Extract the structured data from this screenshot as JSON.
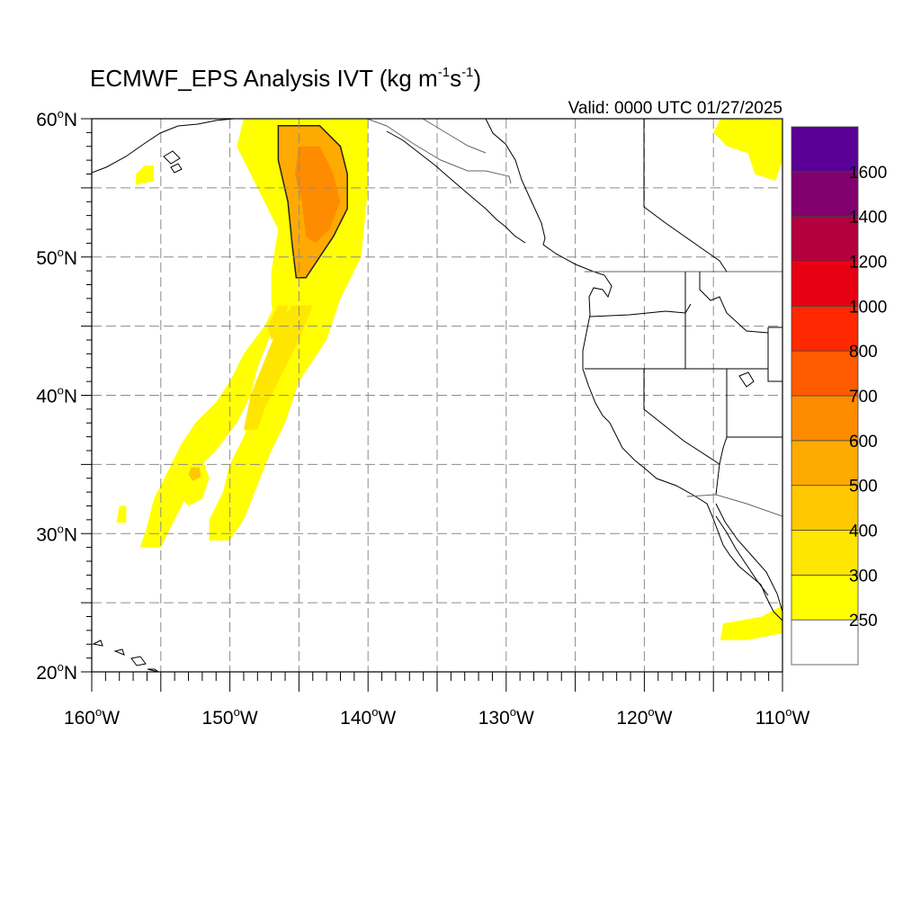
{
  "figure": {
    "title_main": "ECMWF_EPS Analysis IVT (kg m",
    "title_exp1": "-1",
    "title_mid": "s",
    "title_exp2": "-1",
    "title_end": ")",
    "valid_text": "Valid: 0000 UTC 01/27/2025"
  },
  "map": {
    "lon_range": [
      -160,
      -110
    ],
    "lat_range": [
      20,
      60
    ],
    "grid_step_deg": 5,
    "grid": "dashed",
    "lat_labels": [
      {
        "value": 60,
        "text": "60",
        "hemi": "N"
      },
      {
        "value": 50,
        "text": "50",
        "hemi": "N"
      },
      {
        "value": 40,
        "text": "40",
        "hemi": "N"
      },
      {
        "value": 30,
        "text": "30",
        "hemi": "N"
      },
      {
        "value": 20,
        "text": "20",
        "hemi": "N"
      }
    ],
    "lon_labels": [
      {
        "value": -160,
        "text": "160",
        "hemi": "W"
      },
      {
        "value": -150,
        "text": "150",
        "hemi": "W"
      },
      {
        "value": -140,
        "text": "140",
        "hemi": "W"
      },
      {
        "value": -130,
        "text": "130",
        "hemi": "W"
      },
      {
        "value": -120,
        "text": "120",
        "hemi": "W"
      },
      {
        "value": -110,
        "text": "110",
        "hemi": "W"
      }
    ],
    "contour_level": 600
  },
  "colorbar": {
    "levels": [
      "250",
      "300",
      "400",
      "500",
      "600",
      "700",
      "800",
      "1000",
      "1200",
      "1400",
      "1600"
    ],
    "colors": [
      "#ffffff",
      "#ffff00",
      "#ffe600",
      "#ffc800",
      "#ffaa00",
      "#ff8c00",
      "#ff5a00",
      "#ff2800",
      "#e60012",
      "#b4003c",
      "#82006e",
      "#5a0096"
    ]
  },
  "ivt_field": {
    "units": "kg m-1 s-1",
    "regions": [
      {
        "name": "river-north-head-outer",
        "level_index": 2,
        "polygon": [
          [
            -147.5,
            60
          ],
          [
            -140.5,
            60
          ],
          [
            -140.5,
            55
          ],
          [
            -141,
            50
          ],
          [
            -143,
            47
          ],
          [
            -144.5,
            45.5
          ],
          [
            -146,
            45
          ],
          [
            -147,
            46
          ],
          [
            -146,
            49
          ],
          [
            -145.5,
            52
          ],
          [
            -147,
            55
          ],
          [
            -148.5,
            58
          ],
          [
            -148.5,
            60
          ]
        ]
      },
      {
        "name": "river-north-head-yellow",
        "level_index": 1,
        "polygon": [
          [
            -149,
            60
          ],
          [
            -140,
            60
          ],
          [
            -140,
            55
          ],
          [
            -140.5,
            50
          ],
          [
            -142,
            47
          ],
          [
            -143.5,
            45
          ],
          [
            -145,
            44
          ],
          [
            -146,
            44
          ],
          [
            -147,
            46.5
          ],
          [
            -147,
            49
          ],
          [
            -146.5,
            52
          ],
          [
            -148,
            55
          ],
          [
            -149.5,
            58
          ]
        ]
      },
      {
        "name": "river-main-body",
        "level_index": 1,
        "polygon": [
          [
            -144.5,
            47
          ],
          [
            -142,
            47
          ],
          [
            -143,
            44
          ],
          [
            -145,
            41
          ],
          [
            -146,
            38
          ],
          [
            -147,
            36
          ],
          [
            -148,
            33.5
          ],
          [
            -149,
            31
          ],
          [
            -150,
            29.5
          ],
          [
            -151.5,
            29.5
          ],
          [
            -151.5,
            31
          ],
          [
            -150.5,
            33
          ],
          [
            -150,
            35
          ],
          [
            -149,
            37
          ],
          [
            -148,
            40
          ],
          [
            -147.5,
            42
          ],
          [
            -146.5,
            44.5
          ]
        ]
      },
      {
        "name": "river-main-inner",
        "level_index": 2,
        "polygon": [
          [
            -145.5,
            46.5
          ],
          [
            -144,
            46.5
          ],
          [
            -145,
            44
          ],
          [
            -146.5,
            41
          ],
          [
            -147.5,
            39
          ],
          [
            -148,
            37.5
          ],
          [
            -149,
            37.5
          ],
          [
            -148.5,
            40
          ],
          [
            -147.5,
            42.5
          ],
          [
            -146.5,
            45
          ]
        ]
      },
      {
        "name": "river-west-filament",
        "level_index": 1,
        "polygon": [
          [
            -147,
            49
          ],
          [
            -146.5,
            47
          ],
          [
            -147.5,
            45
          ],
          [
            -149,
            43
          ],
          [
            -150,
            41
          ],
          [
            -151,
            39.5
          ],
          [
            -152.5,
            38
          ],
          [
            -153.5,
            36.5
          ],
          [
            -154.5,
            34.5
          ],
          [
            -155.5,
            32.5
          ],
          [
            -156,
            30.5
          ],
          [
            -156.5,
            29
          ],
          [
            -155,
            29
          ],
          [
            -154,
            31
          ],
          [
            -153,
            33
          ],
          [
            -152.5,
            34.5
          ],
          [
            -151,
            36
          ],
          [
            -149.5,
            38
          ],
          [
            -148.5,
            40
          ],
          [
            -148,
            42
          ],
          [
            -147,
            44.5
          ],
          [
            -146,
            47
          ]
        ]
      },
      {
        "name": "river-west-orange-core",
        "level_index": 2,
        "polygon": [
          [
            -146.5,
            46.5
          ],
          [
            -145.8,
            46.5
          ],
          [
            -146,
            45
          ],
          [
            -147,
            44
          ],
          [
            -147.3,
            45
          ]
        ]
      },
      {
        "name": "river-sw-patch",
        "level_index": 1,
        "polygon": [
          [
            -153.5,
            35.5
          ],
          [
            -152,
            35.5
          ],
          [
            -151.5,
            34
          ],
          [
            -152,
            32.5
          ],
          [
            -153,
            32
          ],
          [
            -154,
            33
          ],
          [
            -154.3,
            34.5
          ]
        ]
      },
      {
        "name": "river-sw-core",
        "level_index": 3,
        "polygon": [
          [
            -152.8,
            34.8
          ],
          [
            -152.2,
            34.8
          ],
          [
            -152.1,
            34.1
          ],
          [
            -152.7,
            33.8
          ],
          [
            -153,
            34.3
          ]
        ]
      },
      {
        "name": "north-head-level4",
        "level_index": 4,
        "polygon": [
          [
            -146.5,
            59.5
          ],
          [
            -143.5,
            59.5
          ],
          [
            -142,
            58
          ],
          [
            -141.5,
            56
          ],
          [
            -141.5,
            53.5
          ],
          [
            -142.5,
            51.5
          ],
          [
            -143.5,
            50
          ],
          [
            -144.5,
            48.5
          ],
          [
            -145.2,
            48.5
          ],
          [
            -145.5,
            51
          ],
          [
            -145.8,
            54
          ],
          [
            -146.5,
            57
          ]
        ]
      },
      {
        "name": "north-head-level5",
        "level_index": 5,
        "polygon": [
          [
            -145,
            58
          ],
          [
            -143.5,
            58
          ],
          [
            -142.5,
            56
          ],
          [
            -142,
            54
          ],
          [
            -142.8,
            52
          ],
          [
            -143.8,
            51
          ],
          [
            -144.5,
            51.5
          ],
          [
            -144.8,
            54
          ],
          [
            -145.3,
            56
          ]
        ]
      },
      {
        "name": "ne-corner-patch",
        "level_index": 1,
        "polygon": [
          [
            -114.5,
            60
          ],
          [
            -110,
            60
          ],
          [
            -110,
            57
          ],
          [
            -110.5,
            55.5
          ],
          [
            -112,
            56
          ],
          [
            -112.5,
            57.5
          ],
          [
            -114,
            58
          ],
          [
            -115,
            59
          ]
        ]
      },
      {
        "name": "baja-patch",
        "level_index": 1,
        "polygon": [
          [
            -114.3,
            23.5
          ],
          [
            -111.5,
            24
          ],
          [
            -110,
            24.8
          ],
          [
            -110,
            22.8
          ],
          [
            -112.5,
            22.3
          ],
          [
            -114.5,
            22.3
          ]
        ]
      },
      {
        "name": "west-small-patch-1",
        "level_index": 1,
        "polygon": [
          [
            -156.2,
            56.6
          ],
          [
            -155.5,
            56.6
          ],
          [
            -155.5,
            55.5
          ],
          [
            -156.8,
            55.2
          ],
          [
            -156.8,
            56
          ]
        ]
      },
      {
        "name": "west-small-patch-2",
        "level_index": 1,
        "polygon": [
          [
            -158,
            32
          ],
          [
            -157.5,
            32
          ],
          [
            -157.5,
            30.8
          ],
          [
            -158.2,
            30.8
          ]
        ]
      }
    ]
  }
}
